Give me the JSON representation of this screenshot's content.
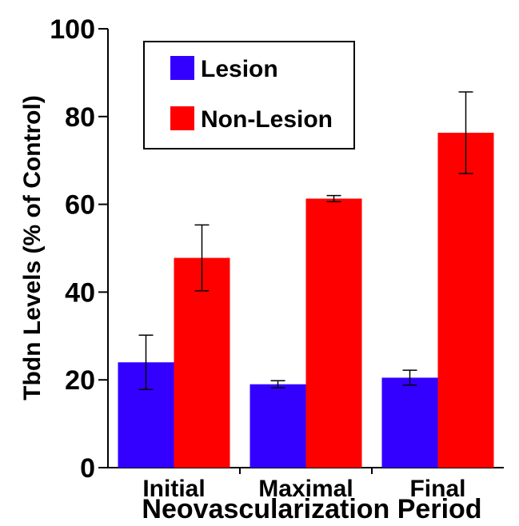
{
  "chart_data": {
    "type": "bar",
    "title": "",
    "xlabel": "Neovascularization Period",
    "ylabel": "Tbdn Levels (% of Control)",
    "categories": [
      "Initial",
      "Maximal",
      "Final"
    ],
    "series": [
      {
        "name": "Lesion",
        "color": "#3300ff",
        "values": [
          24,
          19,
          20.5
        ],
        "errors": [
          6.2,
          0.8,
          1.7
        ]
      },
      {
        "name": "Non-Lesion",
        "color": "#ff0000",
        "values": [
          47.8,
          61.3,
          76.3
        ],
        "errors": [
          7.5,
          0.7,
          9.3
        ]
      }
    ],
    "ylim": [
      0,
      100
    ],
    "yticks": [
      0,
      20,
      40,
      60,
      80,
      100
    ],
    "grid": false,
    "legend_position": "top-left"
  }
}
